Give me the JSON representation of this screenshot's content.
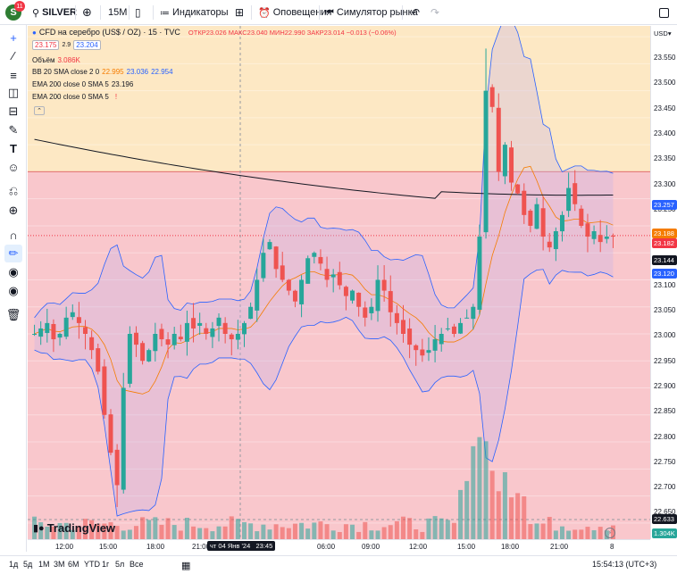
{
  "toolbar": {
    "badge": "11",
    "symbol": "SILVER",
    "interval": "15M",
    "indicators": "Индикаторы",
    "alerts": "Оповещения",
    "replay": "Симулятор рынка"
  },
  "legend": {
    "title": "CFD на серебро (US$ / OZ) · 15 · TVC",
    "ohlc_label": "ОТКР23.026 МАКС23.040 МИН22.990 ЗАКР23.014 −0.013 (−0.06%)",
    "ohlc": {
      "o": "23.026",
      "h": "23.040",
      "l": "22.990",
      "c": "23.014",
      "chg": "−0.013 (−0.06%)"
    },
    "bid": "23.175",
    "spread": "2.9",
    "ask": "23.204",
    "volume_label": "Объём",
    "volume_value": "3.086K",
    "bb_label": "BB 20 SMA close 2 0",
    "bb_basis": "22.995",
    "bb_upper": "23.036",
    "bb_lower": "22.954",
    "ema1_label": "EMA 200 close 0 SMA 5",
    "ema1_value": "23.196",
    "ema2_label": "EMA 200 close 0 SMA 5",
    "ema2_value": "!"
  },
  "axis": {
    "currency": "USD",
    "price_ticks": [
      "23.550",
      "23.500",
      "23.450",
      "23.400",
      "23.350",
      "23.300",
      "23.250",
      "23.200",
      "23.150",
      "23.100",
      "23.050",
      "23.000",
      "22.950",
      "22.900",
      "22.850",
      "22.800",
      "22.750",
      "22.700",
      "22.650"
    ],
    "time_ticks": [
      "12:00",
      "15:00",
      "18:00",
      "21:00",
      "06:00",
      "09:00",
      "12:00",
      "15:00",
      "18:00",
      "21:00",
      "8"
    ],
    "crosshair_time": "чт 04 Янв '24   23:45",
    "labels": {
      "bb_upper": "23.257",
      "ema": "23.188",
      "last": "23.182",
      "sma": "23.144",
      "bb_lower": "23.120",
      "cursor": "22.633",
      "vol": "1.304K"
    }
  },
  "footer": {
    "ranges": [
      "1д",
      "5д",
      "1М",
      "3М",
      "6М",
      "YTD",
      "1г",
      "5л",
      "Все"
    ],
    "time": "15:54:13 (UTC+3)"
  },
  "watermark": "TradingView",
  "colors": {
    "up": "#26a69a",
    "down": "#ef5350",
    "bb": "#2962ff",
    "ema": "#f57c00",
    "ma": "#131722",
    "zone_top": "#fde8c4",
    "zone_bottom": "#f9c7cc"
  },
  "chart_data": {
    "type": "candlestick",
    "symbol": "SILVER",
    "ylim": [
      22.62,
      23.57
    ],
    "x": [
      "12:00",
      "15:00",
      "18:00",
      "21:00",
      "06:00",
      "09:00",
      "12:00",
      "15:00",
      "18:00",
      "21:00"
    ],
    "close_path": [
      23.0,
      23.01,
      23.02,
      22.99,
      23.0,
      23.03,
      23.04,
      23.02,
      23.0,
      22.97,
      22.93,
      22.85,
      22.78,
      22.72,
      22.9,
      23.0,
      22.98,
      22.95,
      22.97,
      23.0,
      22.99,
      22.98,
      23.0,
      22.99,
      23.02,
      23.01,
      23.02,
      23.0,
      23.01,
      23.03,
      23.0,
      22.99,
      23.0,
      23.02,
      23.05,
      23.1,
      23.15,
      23.17,
      23.12,
      23.1,
      23.08,
      23.06,
      23.1,
      23.14,
      23.15,
      23.13,
      23.1,
      23.11,
      23.09,
      23.07,
      23.08,
      23.05,
      23.03,
      23.05,
      23.1,
      23.08,
      23.04,
      23.02,
      23.0,
      22.98,
      22.97,
      22.96,
      22.97,
      22.99,
      23.0,
      23.01,
      23.0,
      23.02,
      23.03,
      23.05,
      23.18,
      23.45,
      23.42,
      23.3,
      23.35,
      23.28,
      23.26,
      23.22,
      23.2,
      23.24,
      23.18,
      23.16,
      23.19,
      23.22,
      23.27,
      23.24,
      23.2,
      23.18,
      23.19,
      23.17,
      23.18,
      23.18
    ]
  }
}
